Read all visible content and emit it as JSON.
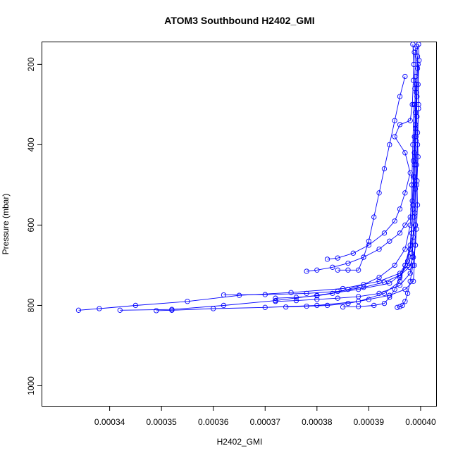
{
  "chart_data": {
    "type": "scatter",
    "title": "ATOM3 Southbound H2402_GMI",
    "xlabel": "H2402_GMI",
    "ylabel": "Pressure (mbar)",
    "xlim": [
      0.000327,
      0.000403
    ],
    "ylim": [
      1050,
      145
    ],
    "y_reversed": true,
    "x_ticks": [
      {
        "value": 0.00034,
        "label": "0.00034"
      },
      {
        "value": 0.00035,
        "label": "0.00035"
      },
      {
        "value": 0.00036,
        "label": "0.00036"
      },
      {
        "value": 0.00037,
        "label": "0.00037"
      },
      {
        "value": 0.00038,
        "label": "0.00038"
      },
      {
        "value": 0.00039,
        "label": "0.00039"
      },
      {
        "value": 0.0004,
        "label": "0.00040"
      }
    ],
    "y_ticks": [
      {
        "value": 200,
        "label": "200"
      },
      {
        "value": 400,
        "label": "400"
      },
      {
        "value": 600,
        "label": "600"
      },
      {
        "value": 800,
        "label": "800"
      },
      {
        "value": 1000,
        "label": "1000"
      }
    ],
    "grid": false,
    "marker": "open-circle",
    "color": "#0000ff",
    "series": [
      {
        "values": [
          [
            0.0003985,
            150
          ],
          [
            0.0003987,
            200
          ],
          [
            0.0003989,
            260
          ],
          [
            0.000399,
            320
          ],
          [
            0.0003988,
            380
          ],
          [
            0.0003986,
            440
          ],
          [
            0.0003987,
            500
          ],
          [
            0.0003985,
            560
          ],
          [
            0.0003983,
            620
          ],
          [
            0.000398,
            660
          ],
          [
            0.0003975,
            690
          ],
          [
            0.000396,
            720
          ],
          [
            0.000392,
            740
          ],
          [
            0.000385,
            758
          ],
          [
            0.000375,
            768
          ],
          [
            0.000365,
            775
          ],
          [
            0.000355,
            790
          ],
          [
            0.000345,
            800
          ],
          [
            0.000338,
            808
          ],
          [
            0.000334,
            812
          ]
        ]
      },
      {
        "values": [
          [
            0.0003993,
            155
          ],
          [
            0.0003994,
            210
          ],
          [
            0.0003992,
            270
          ],
          [
            0.0003993,
            330
          ],
          [
            0.0003991,
            390
          ],
          [
            0.0003992,
            450
          ],
          [
            0.000399,
            510
          ],
          [
            0.0003989,
            570
          ],
          [
            0.0003986,
            630
          ],
          [
            0.0003982,
            670
          ],
          [
            0.0003975,
            700
          ],
          [
            0.000396,
            725
          ],
          [
            0.000394,
            745
          ],
          [
            0.000388,
            760
          ],
          [
            0.00038,
            775
          ],
          [
            0.000372,
            788
          ],
          [
            0.000362,
            800
          ],
          [
            0.000352,
            810
          ],
          [
            0.000342,
            812
          ]
        ]
      },
      {
        "values": [
          [
            0.0003996,
            150
          ],
          [
            0.0003997,
            190
          ],
          [
            0.0003995,
            250
          ],
          [
            0.0003996,
            310
          ],
          [
            0.0003994,
            370
          ],
          [
            0.0003995,
            430
          ],
          [
            0.0003993,
            490
          ],
          [
            0.0003994,
            550
          ],
          [
            0.0003992,
            610
          ],
          [
            0.000399,
            650
          ],
          [
            0.0003986,
            680
          ],
          [
            0.0003978,
            705
          ],
          [
            0.000396,
            725
          ],
          [
            0.000393,
            742
          ],
          [
            0.000389,
            755
          ],
          [
            0.000384,
            765
          ],
          [
            0.000378,
            770
          ],
          [
            0.00037,
            773
          ],
          [
            0.000362,
            774
          ]
        ]
      },
      {
        "values": [
          [
            0.000399,
            160
          ],
          [
            0.0003991,
            230
          ],
          [
            0.0003989,
            300
          ],
          [
            0.000399,
            360
          ],
          [
            0.0003988,
            420
          ],
          [
            0.0003986,
            480
          ],
          [
            0.0003984,
            540
          ],
          [
            0.000398,
            580
          ],
          [
            0.000397,
            600
          ],
          [
            0.000396,
            620
          ],
          [
            0.000394,
            640
          ],
          [
            0.000392,
            660
          ],
          [
            0.000389,
            680
          ],
          [
            0.000386,
            695
          ],
          [
            0.000383,
            705
          ],
          [
            0.00038,
            712
          ],
          [
            0.000378,
            715
          ]
        ]
      },
      {
        "values": [
          [
            0.0003988,
            170
          ],
          [
            0.0003986,
            240
          ],
          [
            0.0003984,
            300
          ],
          [
            0.000398,
            340
          ],
          [
            0.000396,
            350
          ],
          [
            0.000395,
            380
          ],
          [
            0.000397,
            420
          ],
          [
            0.000398,
            470
          ],
          [
            0.000397,
            520
          ],
          [
            0.000396,
            560
          ],
          [
            0.000395,
            590
          ],
          [
            0.000393,
            620
          ],
          [
            0.00039,
            650
          ],
          [
            0.000387,
            670
          ],
          [
            0.000384,
            682
          ],
          [
            0.000382,
            685
          ]
        ]
      },
      {
        "values": [
          [
            0.0003995,
            200
          ],
          [
            0.0003996,
            300
          ],
          [
            0.0003994,
            400
          ],
          [
            0.0003992,
            500
          ],
          [
            0.000399,
            600
          ],
          [
            0.0003988,
            700
          ],
          [
            0.0003986,
            740
          ],
          [
            0.000397,
            760
          ],
          [
            0.000394,
            775
          ],
          [
            0.00039,
            785
          ],
          [
            0.000386,
            795
          ],
          [
            0.000382,
            800
          ],
          [
            0.000378,
            802
          ],
          [
            0.000374,
            804
          ]
        ]
      },
      {
        "values": [
          [
            0.0003992,
            250
          ],
          [
            0.000399,
            350
          ],
          [
            0.0003988,
            450
          ],
          [
            0.0003985,
            550
          ],
          [
            0.000398,
            650
          ],
          [
            0.000397,
            700
          ],
          [
            0.000396,
            740
          ],
          [
            0.000393,
            770
          ],
          [
            0.000388,
            790
          ],
          [
            0.00038,
            800
          ],
          [
            0.00037,
            805
          ],
          [
            0.00036,
            808
          ],
          [
            0.000352,
            812
          ],
          [
            0.000349,
            813
          ]
        ]
      },
      {
        "values": [
          [
            0.0003994,
            180
          ],
          [
            0.0003993,
            280
          ],
          [
            0.0003991,
            380
          ],
          [
            0.0003989,
            480
          ],
          [
            0.0003987,
            580
          ],
          [
            0.0003984,
            680
          ],
          [
            0.000398,
            720
          ],
          [
            0.000396,
            750
          ],
          [
            0.000392,
            770
          ],
          [
            0.000388,
            778
          ],
          [
            0.000384,
            782
          ],
          [
            0.00038,
            785
          ],
          [
            0.000376,
            788
          ],
          [
            0.000372,
            790
          ]
        ]
      },
      {
        "values": [
          [
            0.0003987,
            300
          ],
          [
            0.0003985,
            400
          ],
          [
            0.0003983,
            500
          ],
          [
            0.000398,
            600
          ],
          [
            0.000397,
            660
          ],
          [
            0.000395,
            700
          ],
          [
            0.000392,
            730
          ],
          [
            0.000389,
            748
          ],
          [
            0.000386,
            760
          ],
          [
            0.000383,
            770
          ],
          [
            0.00038,
            776
          ],
          [
            0.000376,
            780
          ],
          [
            0.000372,
            782
          ]
        ]
      },
      {
        "values": [
          [
            0.000399,
            600
          ],
          [
            0.000398,
            660
          ],
          [
            0.000397,
            700
          ],
          [
            0.000396,
            730
          ],
          [
            0.000395,
            760
          ],
          [
            0.000394,
            780
          ],
          [
            0.000393,
            795
          ],
          [
            0.000391,
            800
          ],
          [
            0.000388,
            803
          ],
          [
            0.000385,
            804
          ]
        ]
      },
      {
        "values": [
          [
            0.000399,
            650
          ],
          [
            0.0003985,
            700
          ],
          [
            0.000398,
            740
          ],
          [
            0.0003975,
            770
          ],
          [
            0.000397,
            790
          ],
          [
            0.0003965,
            800
          ],
          [
            0.000396,
            803
          ],
          [
            0.0003955,
            805
          ]
        ]
      },
      {
        "values": [
          [
            0.000397,
            230
          ],
          [
            0.000396,
            280
          ],
          [
            0.000395,
            340
          ],
          [
            0.000394,
            400
          ],
          [
            0.000393,
            460
          ],
          [
            0.000392,
            520
          ],
          [
            0.000391,
            580
          ],
          [
            0.00039,
            640
          ],
          [
            0.000389,
            680
          ],
          [
            0.000388,
            712
          ],
          [
            0.000386,
            712
          ],
          [
            0.000384,
            712
          ]
        ]
      }
    ]
  }
}
